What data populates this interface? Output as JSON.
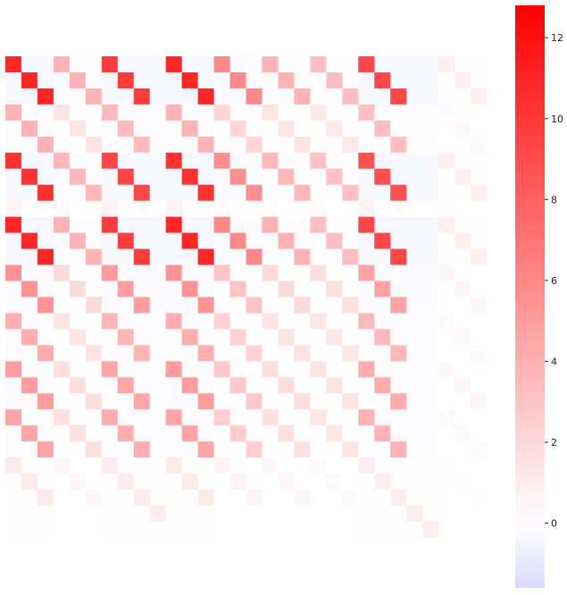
{
  "chart_data": {
    "type": "heatmap",
    "title": "",
    "xlabel": "",
    "ylabel": "",
    "colormap": {
      "name": "bwr",
      "vmin": -1.6,
      "vcenter": 0,
      "vmax": 12.8,
      "low_color": "#d9d9ff",
      "mid_color": "#ffffff",
      "high_color": "#ff0000"
    },
    "colorbar": {
      "ticks": [
        0,
        2,
        4,
        6,
        8,
        10,
        12
      ],
      "tick_labels": [
        "0",
        "2",
        "4",
        "6",
        "8",
        "10",
        "12"
      ]
    },
    "grid_size": 30,
    "blocks": {
      "row_start": [
        0,
        3,
        6,
        9,
        10,
        13,
        16,
        19,
        22,
        25
      ],
      "row_strength": [
        1.0,
        0.35,
        0.95,
        0.06,
        1.0,
        0.5,
        0.38,
        0.45,
        0.42,
        0.1
      ],
      "col_start": [
        0,
        3,
        6,
        10,
        13,
        16,
        19,
        22,
        27
      ],
      "col_strength": [
        1.0,
        0.35,
        0.9,
        1.0,
        0.55,
        0.35,
        0.3,
        0.85,
        0.08
      ],
      "peak_value": 12.8
    },
    "grid": false
  }
}
